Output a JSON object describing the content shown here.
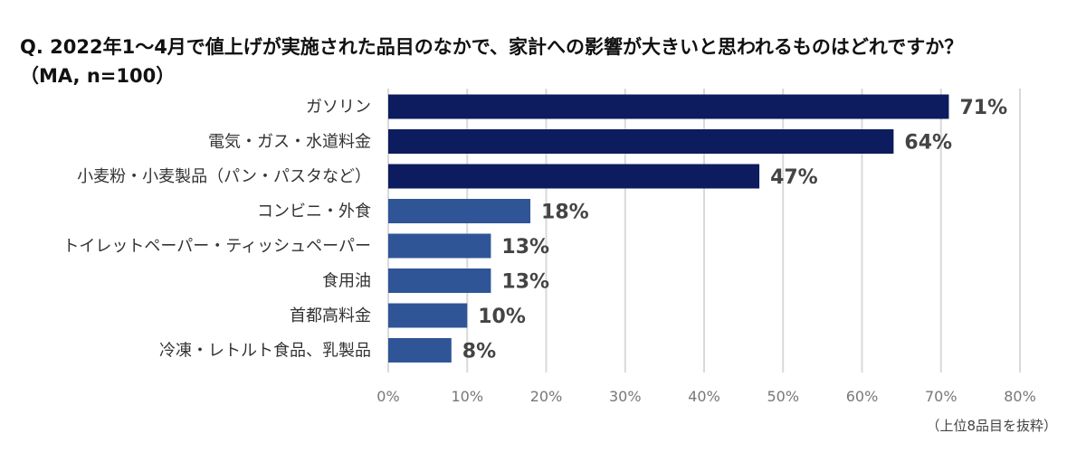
{
  "header": {
    "title": "Q. 2022年1～4月で値上げが実施された品目のなかで、家計への影響が大きいと思われるものはどれですか？",
    "subtitle": "（MA, n=100）"
  },
  "footnote": "（上位8品目を抜粋）",
  "colors": {
    "dark_bar": "#0d1c5e",
    "light_bar": "#2f5597",
    "grid": "#d9d9d9"
  },
  "chart_data": {
    "type": "bar",
    "orientation": "horizontal",
    "categories": [
      "ガソリン",
      "電気・ガス・水道料金",
      "小麦粉・小麦製品（パン・パスタなど）",
      "コンビニ・外食",
      "トイレットペーパー・ティッシュペーパー",
      "食用油",
      "首都高料金",
      "冷凍・レトルト食品、乳製品"
    ],
    "values": [
      71,
      64,
      47,
      18,
      13,
      13,
      10,
      8
    ],
    "value_labels": [
      "71%",
      "64%",
      "47%",
      "18%",
      "13%",
      "13%",
      "10%",
      "8%"
    ],
    "highlight_top": 3,
    "xlim": [
      0,
      80
    ],
    "xticks": [
      "0%",
      "10%",
      "20%",
      "30%",
      "40%",
      "50%",
      "60%",
      "70%",
      "80%"
    ],
    "grid": true,
    "legend": "none"
  }
}
